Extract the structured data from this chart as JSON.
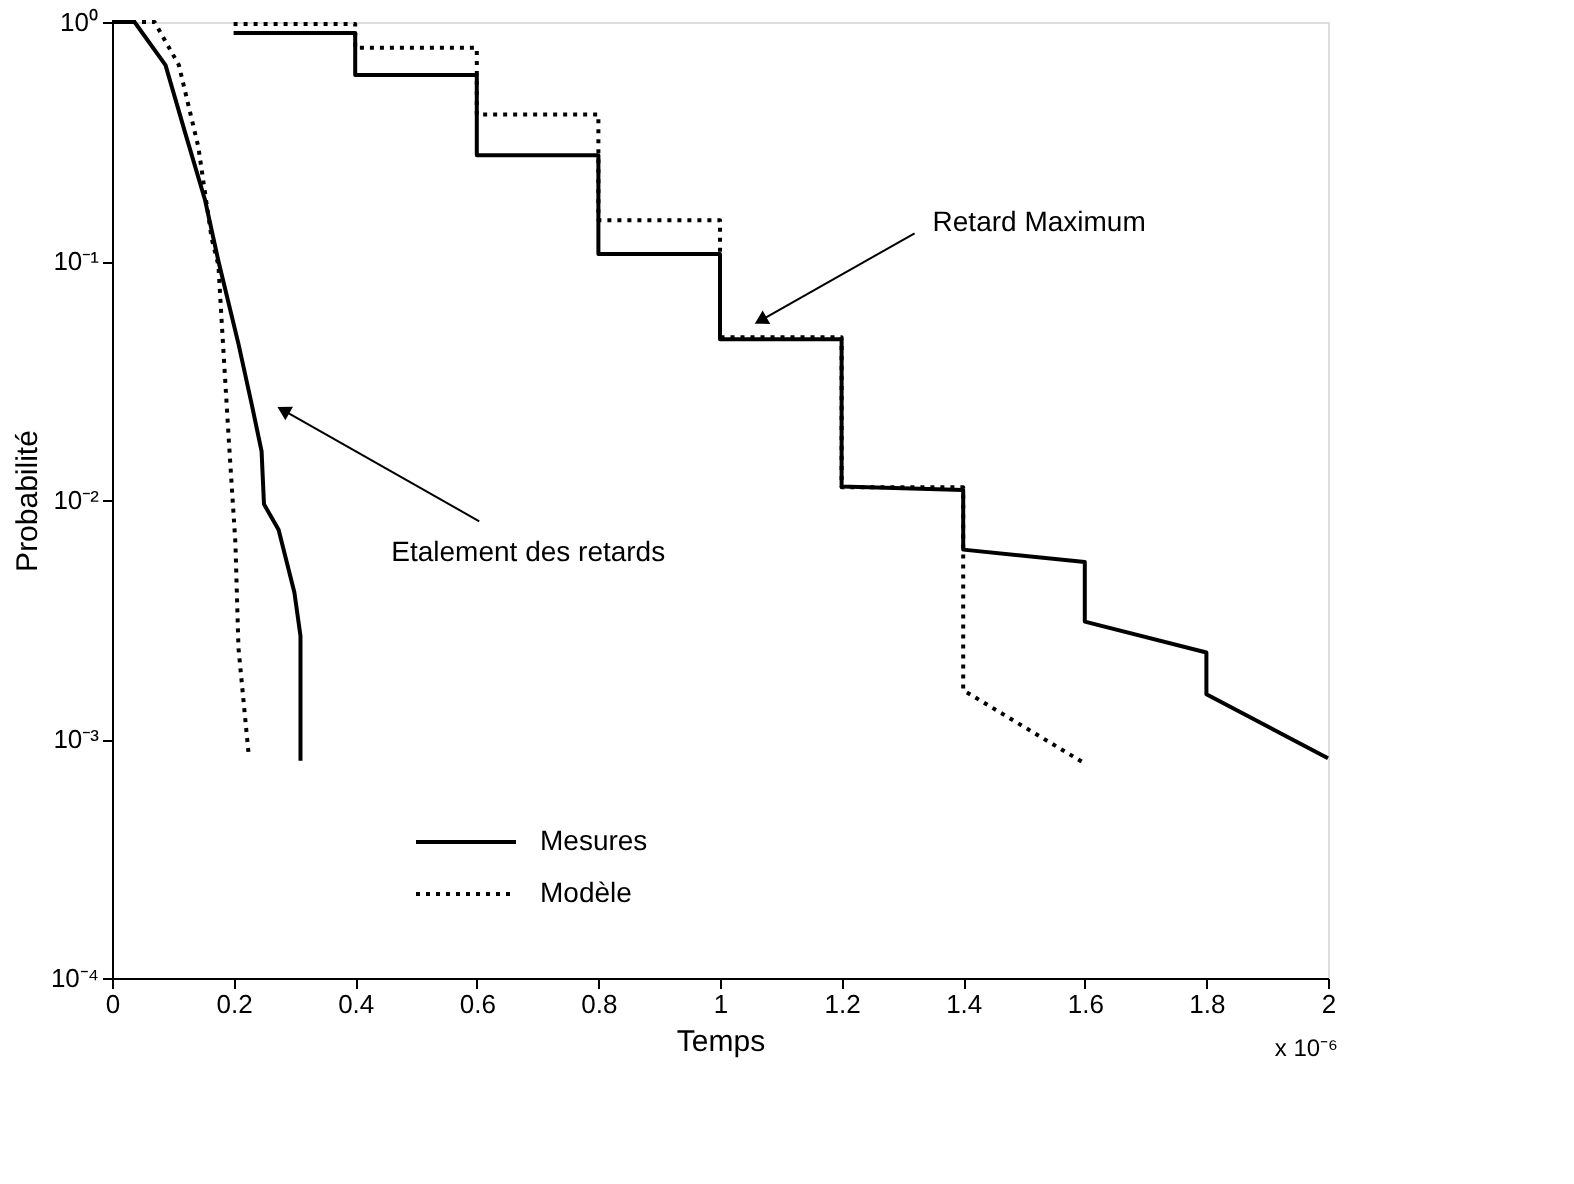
{
  "chart_data": {
    "type": "line",
    "xlabel": "Temps",
    "ylabel": "Probabilité",
    "log": "y",
    "grid": false,
    "legend": "bottom",
    "marker": "none",
    "xlim": [
      0,
      2
    ],
    "xticks": [
      0,
      0.2,
      0.4,
      0.6,
      0.8,
      1,
      1.2,
      1.4,
      1.6,
      1.8,
      2
    ],
    "ylim": [
      0.0001,
      1
    ],
    "yticks": [
      {
        "value": 0.0001,
        "label": "10⁻⁴"
      },
      {
        "value": 0.001,
        "label": "10⁻³"
      },
      {
        "value": 0.01,
        "label": "10⁻²"
      },
      {
        "value": 0.1,
        "label": "10⁻¹"
      },
      {
        "value": 1,
        "label": "10⁰"
      }
    ],
    "series": [
      {
        "name": "Mesures",
        "color": "#000000",
        "line_style": "solid",
        "x": [
          0,
          0.037,
          0.088,
          0.12,
          0.153,
          0.175,
          0.208,
          0.23,
          0.246,
          0.25,
          0.274,
          0.3,
          0.31,
          0.31
        ],
        "values": [
          1,
          1,
          0.66,
          0.346,
          0.18,
          0.1,
          0.045,
          0.025,
          0.016,
          0.0096,
          0.0075,
          0.0041,
          0.0027,
          0.00081
        ]
      },
      {
        "name": "Modèle",
        "color": "#000000",
        "line_style": "dotted",
        "x": [
          0,
          0.07,
          0.11,
          0.142,
          0.164,
          0.175,
          0.18,
          0.192,
          0.203,
          0.208,
          0.225
        ],
        "values": [
          1,
          1,
          0.66,
          0.3,
          0.124,
          0.096,
          0.058,
          0.018,
          0.0066,
          0.0024,
          0.00085
        ]
      },
      {
        "color": "#000000",
        "line_style": "solid",
        "x": [
          0.2,
          0.4,
          0.4,
          0.6,
          0.6,
          0.8,
          0.8,
          1.0,
          1.0,
          1.2,
          1.2,
          1.4,
          1.4,
          1.6,
          1.6,
          1.8,
          1.8,
          2.0
        ],
        "values": [
          0.9,
          0.9,
          0.6,
          0.6,
          0.277,
          0.277,
          0.107,
          0.107,
          0.047,
          0.047,
          0.0114,
          0.011,
          0.0062,
          0.0055,
          0.0031,
          0.0023,
          0.00154,
          0.00083
        ]
      },
      {
        "color": "#000000",
        "line_style": "dotted",
        "x": [
          0.2,
          0.4,
          0.4,
          0.6,
          0.6,
          0.8,
          0.8,
          1.0,
          1.0,
          1.2,
          1.2,
          1.4,
          1.4,
          1.6
        ],
        "values": [
          0.98,
          0.98,
          0.78,
          0.78,
          0.41,
          0.41,
          0.148,
          0.148,
          0.048,
          0.048,
          0.0113,
          0.0113,
          0.0016,
          0.00079
        ]
      }
    ],
    "annotations": [
      {
        "text": "Retard Maximum",
        "x": 1.07,
        "y": 0.057
      },
      {
        "text": "Etalement des retards",
        "x": 0.285,
        "y": 0.0235
      },
      "x 10⁻⁶"
    ]
  }
}
